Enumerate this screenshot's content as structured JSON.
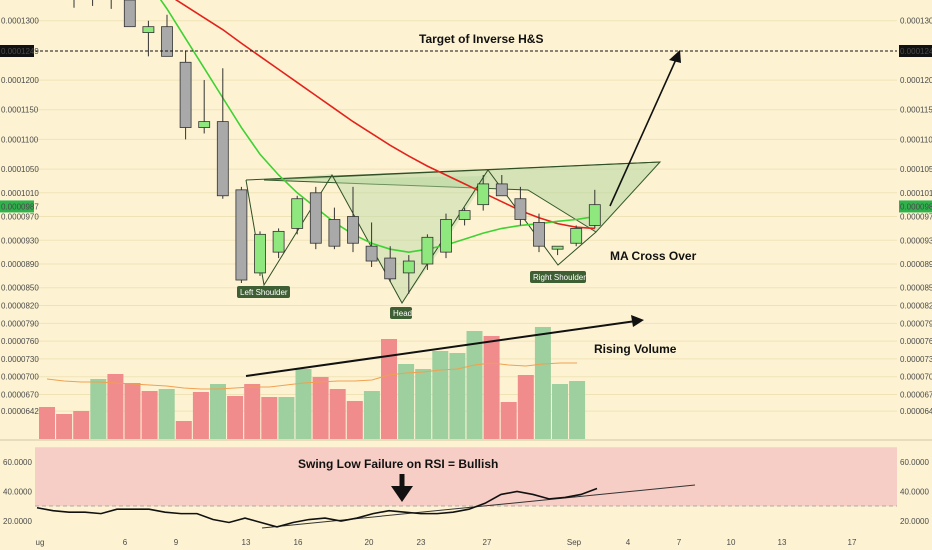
{
  "chart_data": [
    {
      "type": "candlestick",
      "title": "",
      "y_axis_side": "both",
      "ylim": [
        6.4e-05,
        0.000134
      ],
      "price_ticks": [
        "0.0001300",
        "0.0001249",
        "0.0001200",
        "0.0001150",
        "0.0001100",
        "0.0001050",
        "0.0001010",
        "0.0000987",
        "0.0000970",
        "0.0000930",
        "0.0000890",
        "0.0000850",
        "0.0000820",
        "0.0000790",
        "0.0000760",
        "0.0000730",
        "0.0000700",
        "0.0000670",
        "0.0000642"
      ],
      "highlighted_ticks": {
        "0.0001249": "#111111",
        "0.0000987": "#2fb24c"
      },
      "x_ticks": [
        "ug",
        "6",
        "9",
        "13",
        "16",
        "20",
        "23",
        "27",
        "Sep",
        "4",
        "7",
        "10",
        "13",
        "17"
      ],
      "candles": [
        {
          "open": 0.00014,
          "high": 0.000143,
          "low": 0.0001322,
          "close": 0.000136
        },
        {
          "open": 0.000136,
          "high": 0.00014,
          "low": 0.0001325,
          "close": 0.0001345
        },
        {
          "open": 0.0001345,
          "high": 0.000137,
          "low": 0.000132,
          "close": 0.000134
        },
        {
          "open": 0.0001335,
          "high": 0.000136,
          "low": 0.000129,
          "close": 0.000129
        },
        {
          "open": 0.000128,
          "high": 0.00013,
          "low": 0.000124,
          "close": 0.000129
        },
        {
          "open": 0.000129,
          "high": 0.000131,
          "low": 0.000124,
          "close": 0.000124
        },
        {
          "open": 0.000123,
          "high": 0.000125,
          "low": 0.00011,
          "close": 0.000112
        },
        {
          "open": 0.000112,
          "high": 0.00012,
          "low": 0.000111,
          "close": 0.000113
        },
        {
          "open": 0.000113,
          "high": 0.000122,
          "low": 0.0001,
          "close": 0.0001005
        },
        {
          "open": 0.0001015,
          "high": 0.000102,
          "low": 8.58e-05,
          "close": 8.63e-05
        },
        {
          "open": 8.75e-05,
          "high": 9.45e-05,
          "low": 8.7e-05,
          "close": 9.4e-05
        },
        {
          "open": 9.1e-05,
          "high": 9.5e-05,
          "low": 9e-05,
          "close": 9.45e-05
        },
        {
          "open": 9.5e-05,
          "high": 0.0001005,
          "low": 9.4e-05,
          "close": 0.0001
        },
        {
          "open": 0.000101,
          "high": 0.000102,
          "low": 9.15e-05,
          "close": 9.25e-05
        },
        {
          "open": 9.65e-05,
          "high": 9.85e-05,
          "low": 9.15e-05,
          "close": 9.2e-05
        },
        {
          "open": 9.7e-05,
          "high": 0.000102,
          "low": 9.1e-05,
          "close": 9.25e-05
        },
        {
          "open": 9.2e-05,
          "high": 9.6e-05,
          "low": 8.85e-05,
          "close": 8.95e-05
        },
        {
          "open": 9e-05,
          "high": 9.2e-05,
          "low": 8.6e-05,
          "close": 8.65e-05
        },
        {
          "open": 8.75e-05,
          "high": 9.05e-05,
          "low": 8.4e-05,
          "close": 8.95e-05
        },
        {
          "open": 8.9e-05,
          "high": 9.4e-05,
          "low": 8.8e-05,
          "close": 9.35e-05
        },
        {
          "open": 9.1e-05,
          "high": 9.75e-05,
          "low": 9e-05,
          "close": 9.65e-05
        },
        {
          "open": 9.65e-05,
          "high": 9.85e-05,
          "low": 9.55e-05,
          "close": 9.8e-05
        },
        {
          "open": 9.9e-05,
          "high": 0.000104,
          "low": 9.8e-05,
          "close": 0.0001025
        },
        {
          "open": 0.0001025,
          "high": 0.000104,
          "low": 0.0001005,
          "close": 0.0001005
        },
        {
          "open": 0.0001,
          "high": 0.000102,
          "low": 9.55e-05,
          "close": 9.65e-05
        },
        {
          "open": 9.6e-05,
          "high": 9.75e-05,
          "low": 9.1e-05,
          "close": 9.2e-05
        },
        {
          "open": 9.15e-05,
          "high": 9.2e-05,
          "low": 9.05e-05,
          "close": 9.2e-05
        },
        {
          "open": 9.25e-05,
          "high": 9.55e-05,
          "low": 9.2e-05,
          "close": 9.5e-05
        },
        {
          "open": 9.55e-05,
          "high": 0.0001015,
          "low": 9.5e-05,
          "close": 9.9e-05
        }
      ],
      "candle_up_color": "#8fe87d",
      "candle_down_color": "#a9a9a9",
      "moving_averages": [
        {
          "color": "#e3221c",
          "values": [
            0.000144,
            0.0001425,
            0.0001405,
            0.0001385,
            0.0001365,
            0.0001345,
            0.0001325,
            0.0001305,
            0.0001285,
            0.0001262,
            0.000124,
            0.0001218,
            0.0001196,
            0.0001174,
            0.0001152,
            0.000113,
            0.000111,
            0.000109,
            0.0001072,
            0.0001055,
            0.000104,
            0.0001025,
            0.000101,
            9.95e-05,
            9.8e-05,
            9.68e-05,
            9.58e-05,
            9.52e-05,
            9.5e-05
          ]
        },
        {
          "color": "#3ed232",
          "values": [
            0.000145,
            0.000144,
            0.000142,
            0.00014,
            0.0001365,
            0.000132,
            0.000127,
            0.000122,
            0.000117,
            0.000112,
            0.0001075,
            0.000104,
            0.000101,
            9.85e-05,
            9.6e-05,
            9.4e-05,
            9.25e-05,
            9.15e-05,
            9.1e-05,
            9.15e-05,
            9.22e-05,
            9.32e-05,
            9.42e-05,
            9.5e-05,
            9.55e-05,
            9.58e-05,
            9.62e-05,
            9.65e-05,
            9.7e-05
          ]
        }
      ],
      "volume": [
        {
          "value": 32,
          "color": "#f08c8c"
        },
        {
          "value": 25,
          "color": "#f08c8c"
        },
        {
          "value": 28,
          "color": "#f08c8c"
        },
        {
          "value": 60,
          "color": "#9ecf9e"
        },
        {
          "value": 65,
          "color": "#f08c8c"
        },
        {
          "value": 56,
          "color": "#f08c8c"
        },
        {
          "value": 48,
          "color": "#f08c8c"
        },
        {
          "value": 50,
          "color": "#9ecf9e"
        },
        {
          "value": 18,
          "color": "#f08c8c"
        },
        {
          "value": 47,
          "color": "#f08c8c"
        },
        {
          "value": 55,
          "color": "#9ecf9e"
        },
        {
          "value": 43,
          "color": "#f08c8c"
        },
        {
          "value": 55,
          "color": "#f08c8c"
        },
        {
          "value": 42,
          "color": "#f08c8c"
        },
        {
          "value": 42,
          "color": "#9ecf9e"
        },
        {
          "value": 70,
          "color": "#9ecf9e"
        },
        {
          "value": 62,
          "color": "#f08c8c"
        },
        {
          "value": 50,
          "color": "#f08c8c"
        },
        {
          "value": 38,
          "color": "#f08c8c"
        },
        {
          "value": 48,
          "color": "#9ecf9e"
        },
        {
          "value": 100,
          "color": "#f08c8c"
        },
        {
          "value": 75,
          "color": "#9ecf9e"
        },
        {
          "value": 70,
          "color": "#9ecf9e"
        },
        {
          "value": 88,
          "color": "#9ecf9e"
        },
        {
          "value": 86,
          "color": "#9ecf9e"
        },
        {
          "value": 108,
          "color": "#9ecf9e"
        },
        {
          "value": 103,
          "color": "#f08c8c"
        },
        {
          "value": 37,
          "color": "#f08c8c"
        },
        {
          "value": 64,
          "color": "#f08c8c"
        },
        {
          "value": 112,
          "color": "#9ecf9e"
        },
        {
          "value": 55,
          "color": "#9ecf9e"
        },
        {
          "value": 58,
          "color": "#9ecf9e"
        }
      ],
      "volume_ma": {
        "color": "#f0a050",
        "values": [
          60,
          58,
          57,
          57,
          56,
          55,
          54,
          53,
          51,
          50,
          50,
          51,
          52,
          52,
          54,
          56,
          57,
          58,
          58,
          59,
          64,
          66,
          67,
          69,
          70,
          74,
          76,
          74,
          73,
          75,
          76,
          76
        ]
      },
      "annotations": {
        "target_label": "Target of Inverse H&S",
        "ma_cross_label": "MA Cross Over",
        "rising_volume_label": "Rising Volume",
        "left_shoulder_label": "Left Shoulder",
        "head_label": "Head",
        "right_shoulder_label": "Right Shoulder"
      }
    },
    {
      "type": "line",
      "title": "",
      "ylim": [
        10,
        75
      ],
      "y_ticks": [
        "60.0000",
        "40.0000",
        "20.0000"
      ],
      "band": [
        30,
        70
      ],
      "band_color": "#f3c2c0",
      "rsi_values": [
        29,
        27,
        26,
        26,
        25,
        28,
        28,
        28,
        26,
        25,
        25,
        21,
        19,
        22,
        19,
        16,
        19,
        21,
        22,
        20,
        22,
        25,
        27,
        26,
        25,
        25,
        26,
        28,
        32,
        38,
        40,
        38,
        35,
        36,
        38,
        42
      ],
      "annotation": "Swing Low Failure on RSI = Bullish"
    }
  ]
}
